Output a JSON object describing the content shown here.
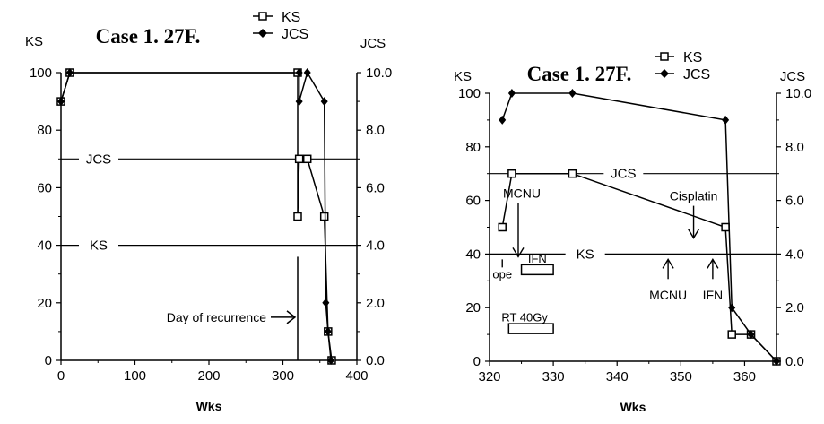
{
  "chart_data": [
    {
      "type": "line",
      "title": "Case 1. 27F.",
      "xlabel": "Wks",
      "ylabel_left": "KS",
      "ylabel_right": "JCS",
      "xlim": [
        0,
        400
      ],
      "ylim_left": [
        0,
        100
      ],
      "ylim_right": [
        0,
        10
      ],
      "x_ticks": [
        "0",
        "100",
        "200",
        "300",
        "400"
      ],
      "y_left_ticks": [
        "0",
        "20",
        "40",
        "60",
        "80",
        "100"
      ],
      "y_right_ticks": [
        "0.0",
        "2.0",
        "4.0",
        "6.0",
        "8.0",
        "10.0"
      ],
      "legend": [
        {
          "label": "KS",
          "marker": "open-square"
        },
        {
          "label": "JCS",
          "marker": "filled-diamond"
        }
      ],
      "series": [
        {
          "name": "KS",
          "axis": "left",
          "marker": "open-square",
          "points": [
            [
              0,
              90
            ],
            [
              12,
              100
            ],
            [
              320,
              100
            ],
            [
              320,
              50
            ],
            [
              322,
              70
            ],
            [
              333,
              70
            ],
            [
              356,
              50
            ],
            [
              361,
              10
            ],
            [
              366,
              0
            ]
          ]
        },
        {
          "name": "JCS",
          "axis": "right",
          "marker": "filled-diamond",
          "points": [
            [
              0,
              9
            ],
            [
              12,
              10
            ],
            [
              322,
              10
            ],
            [
              322,
              9
            ],
            [
              333,
              10
            ],
            [
              356,
              9
            ],
            [
              358,
              2
            ],
            [
              361,
              1
            ],
            [
              365,
              0
            ]
          ]
        }
      ],
      "reference_lines": [
        {
          "label": "JCS",
          "y": 70
        },
        {
          "label": "KS",
          "y": 40
        }
      ],
      "annotations": [
        {
          "text": "Day of recurrence",
          "x": 320
        }
      ]
    },
    {
      "type": "line",
      "title": "Case 1. 27F.",
      "xlabel": "Wks",
      "ylabel_left": "KS",
      "ylabel_right": "JCS",
      "xlim": [
        320,
        365
      ],
      "ylim_left": [
        0,
        100
      ],
      "ylim_right": [
        0,
        10
      ],
      "x_ticks": [
        "320",
        "330",
        "340",
        "350",
        "360"
      ],
      "y_left_ticks": [
        "0",
        "20",
        "40",
        "60",
        "80",
        "100"
      ],
      "y_right_ticks": [
        "0.0",
        "2.0",
        "4.0",
        "6.0",
        "8.0",
        "10.0"
      ],
      "legend": [
        {
          "label": "KS",
          "marker": "open-square"
        },
        {
          "label": "JCS",
          "marker": "filled-diamond"
        }
      ],
      "series": [
        {
          "name": "KS",
          "axis": "left",
          "marker": "open-square",
          "points": [
            [
              322,
              50
            ],
            [
              323.5,
              70
            ],
            [
              333,
              70
            ],
            [
              357,
              50
            ],
            [
              358,
              10
            ],
            [
              361,
              10
            ],
            [
              365,
              0
            ]
          ]
        },
        {
          "name": "JCS",
          "axis": "right",
          "marker": "filled-diamond",
          "points": [
            [
              322,
              9
            ],
            [
              323.5,
              10
            ],
            [
              333,
              10
            ],
            [
              357,
              9
            ],
            [
              358,
              2
            ],
            [
              361,
              1
            ],
            [
              365,
              0
            ]
          ]
        }
      ],
      "reference_lines": [
        {
          "label": "JCS",
          "y": 70
        },
        {
          "label": "KS",
          "y": 40
        }
      ],
      "annotations": [
        {
          "text": "MCNU",
          "x": 324.5,
          "y": 60,
          "arrow": "down"
        },
        {
          "text": "Cisplatin",
          "x": 352,
          "y": 60,
          "arrow": "down"
        },
        {
          "text": "MCNU",
          "x": 348,
          "y": 30,
          "arrow": "up"
        },
        {
          "text": "IFN",
          "x": 355,
          "y": 30,
          "arrow": "up"
        },
        {
          "text": "ope",
          "x": 322,
          "y": 38,
          "arrow": "up"
        }
      ],
      "treatment_bars": [
        {
          "text": "IFN",
          "x_start": 325,
          "x_end": 330,
          "y": 35
        },
        {
          "text": "RT 40Gy",
          "x_start": 323,
          "x_end": 330,
          "y": 12
        }
      ]
    }
  ]
}
